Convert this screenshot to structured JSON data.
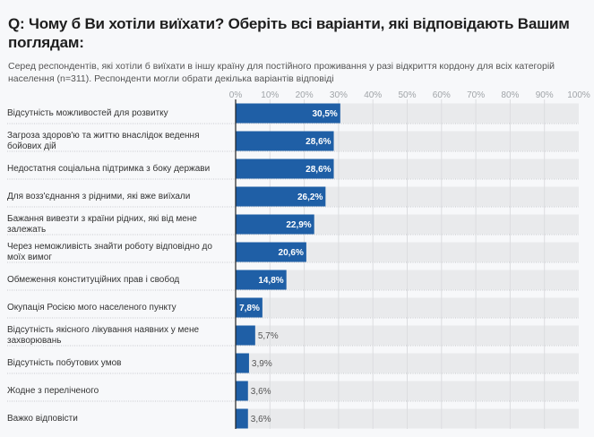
{
  "title": "Q: Чому б Ви хотіли виїхати? Оберіть всі варіанти, які відповідають Вашим поглядам:",
  "subtitle": "Серед респондентів, які хотіли б виїхати в іншу країну для постійного проживання у разі відкриття кордону для всіх категорій населення (n=311). Респонденти могли обрати декілька варіантів відповіді",
  "chart_data": {
    "type": "bar",
    "orientation": "horizontal",
    "title": "Q: Чому б Ви хотіли виїхати? Оберіть всі варіанти, які відповідають Вашим поглядам:",
    "xlabel": "",
    "ylabel": "",
    "xlim": [
      0,
      100
    ],
    "x_ticks": [
      "0%",
      "10%",
      "20%",
      "30%",
      "40%",
      "50%",
      "60%",
      "70%",
      "80%",
      "90%",
      "100%"
    ],
    "grid": true,
    "bar_color": "#1f5fa6",
    "track_color": "#e9eaec",
    "categories": [
      "Відсутність можливостей для розвитку",
      "Загроза здоров'ю та життю внаслідок ведення бойових дій",
      "Недостатня соціальна підтримка з боку держави",
      "Для возз'єднання з рідними, які вже виїхали",
      "Бажання вивезти з країни рідних, які від мене залежать",
      "Через неможливість знайти роботу відповідно до моїх вимог",
      "Обмеження конституційних прав і свобод",
      "Окупація Росією мого населеного пункту",
      "Відсутність якісного лікування наявних у мене захворювань",
      "Відсутність побутових умов",
      "Жодне з переліченого",
      "Важко відповісти"
    ],
    "values": [
      30.5,
      28.6,
      28.6,
      26.2,
      22.9,
      20.6,
      14.8,
      7.8,
      5.7,
      3.9,
      3.6,
      3.6
    ],
    "value_labels": [
      "30,5%",
      "28,6%",
      "28,6%",
      "26,2%",
      "22,9%",
      "20,6%",
      "14,8%",
      "7,8%",
      "5,7%",
      "3,9%",
      "3,6%",
      "3,6%"
    ]
  }
}
